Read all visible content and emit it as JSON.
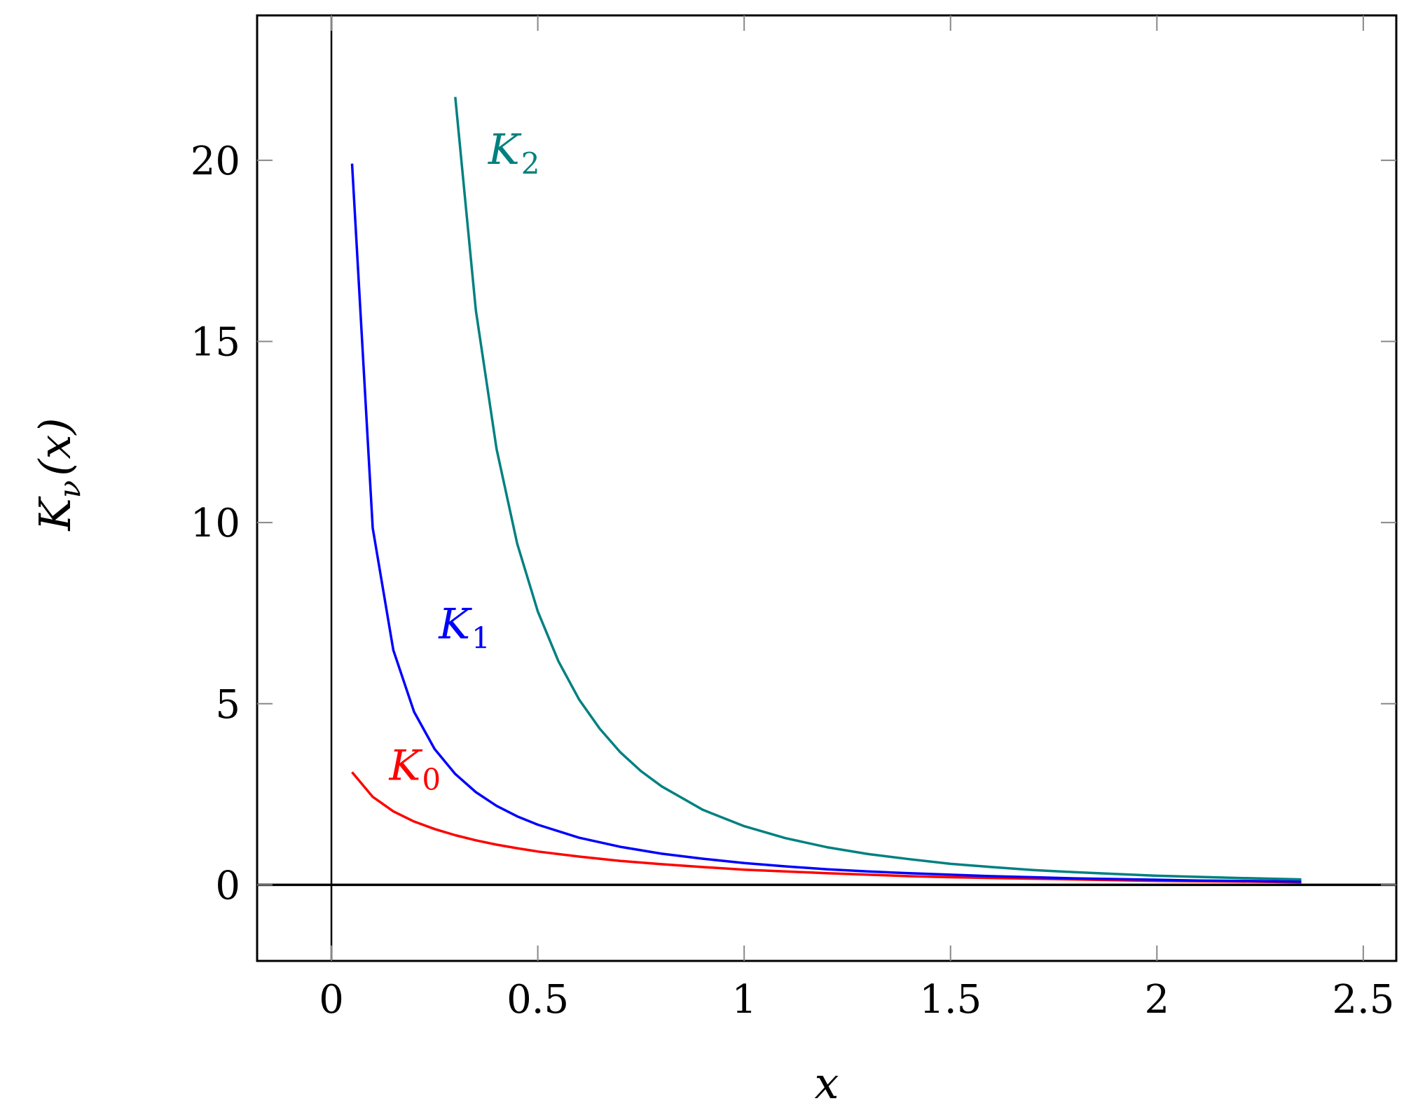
{
  "chart_data": {
    "type": "line",
    "title": "",
    "xlabel": "x",
    "ylabel": {
      "base": "K",
      "sub": "ν",
      "arg": "(x)"
    },
    "xlim": [
      -0.18,
      2.58
    ],
    "ylim": [
      -2.1,
      24.0
    ],
    "xticks": [
      0,
      0.5,
      1,
      1.5,
      2,
      2.5
    ],
    "xtick_labels": [
      "0",
      "0.5",
      "1",
      "1.5",
      "2",
      "2.5"
    ],
    "yticks": [
      0,
      5,
      10,
      15,
      20
    ],
    "ytick_labels": [
      "0",
      "5",
      "10",
      "15",
      "20"
    ],
    "grid": false,
    "legend": "none",
    "series": [
      {
        "name": "K_0",
        "label": {
          "base": "K",
          "sub": "0",
          "x": 0.14,
          "y": 2.9
        },
        "color": "#ff0000",
        "x": [
          0.05,
          0.1,
          0.15,
          0.2,
          0.25,
          0.3,
          0.35,
          0.4,
          0.45,
          0.5,
          0.6,
          0.7,
          0.8,
          0.9,
          1.0,
          1.1,
          1.2,
          1.3,
          1.4,
          1.5,
          1.6,
          1.7,
          1.8,
          1.9,
          2.0,
          2.1,
          2.2,
          2.35
        ],
        "y": [
          3.11,
          2.43,
          2.03,
          1.75,
          1.54,
          1.37,
          1.23,
          1.11,
          1.01,
          0.92,
          0.78,
          0.66,
          0.57,
          0.49,
          0.42,
          0.37,
          0.32,
          0.28,
          0.24,
          0.21,
          0.19,
          0.17,
          0.15,
          0.13,
          0.11,
          0.1,
          0.09,
          0.07
        ]
      },
      {
        "name": "K_1",
        "label": {
          "base": "K",
          "sub": "1",
          "x": 0.26,
          "y": 6.8
        },
        "color": "#0000ff",
        "x": [
          0.05,
          0.1,
          0.15,
          0.2,
          0.25,
          0.3,
          0.35,
          0.4,
          0.45,
          0.5,
          0.6,
          0.7,
          0.8,
          0.9,
          1.0,
          1.1,
          1.2,
          1.3,
          1.4,
          1.5,
          1.6,
          1.7,
          1.8,
          1.9,
          2.0,
          2.1,
          2.2,
          2.35
        ],
        "y": [
          19.91,
          9.85,
          6.48,
          4.78,
          3.75,
          3.06,
          2.56,
          2.18,
          1.89,
          1.66,
          1.3,
          1.05,
          0.86,
          0.72,
          0.6,
          0.51,
          0.43,
          0.37,
          0.32,
          0.28,
          0.24,
          0.21,
          0.18,
          0.16,
          0.14,
          0.12,
          0.11,
          0.09
        ]
      },
      {
        "name": "K_2",
        "label": {
          "base": "K",
          "sub": "2",
          "x": 0.38,
          "y": 19.9
        },
        "color": "#008080",
        "x": [
          0.3,
          0.35,
          0.4,
          0.45,
          0.5,
          0.55,
          0.6,
          0.65,
          0.7,
          0.75,
          0.8,
          0.9,
          1.0,
          1.1,
          1.2,
          1.3,
          1.4,
          1.5,
          1.6,
          1.7,
          1.8,
          1.9,
          2.0,
          2.1,
          2.2,
          2.35
        ],
        "y": [
          21.75,
          15.86,
          12.04,
          9.42,
          7.55,
          6.17,
          5.12,
          4.31,
          3.66,
          3.14,
          2.72,
          2.07,
          1.62,
          1.29,
          1.04,
          0.85,
          0.71,
          0.58,
          0.49,
          0.41,
          0.35,
          0.3,
          0.25,
          0.22,
          0.19,
          0.15
        ]
      }
    ]
  }
}
